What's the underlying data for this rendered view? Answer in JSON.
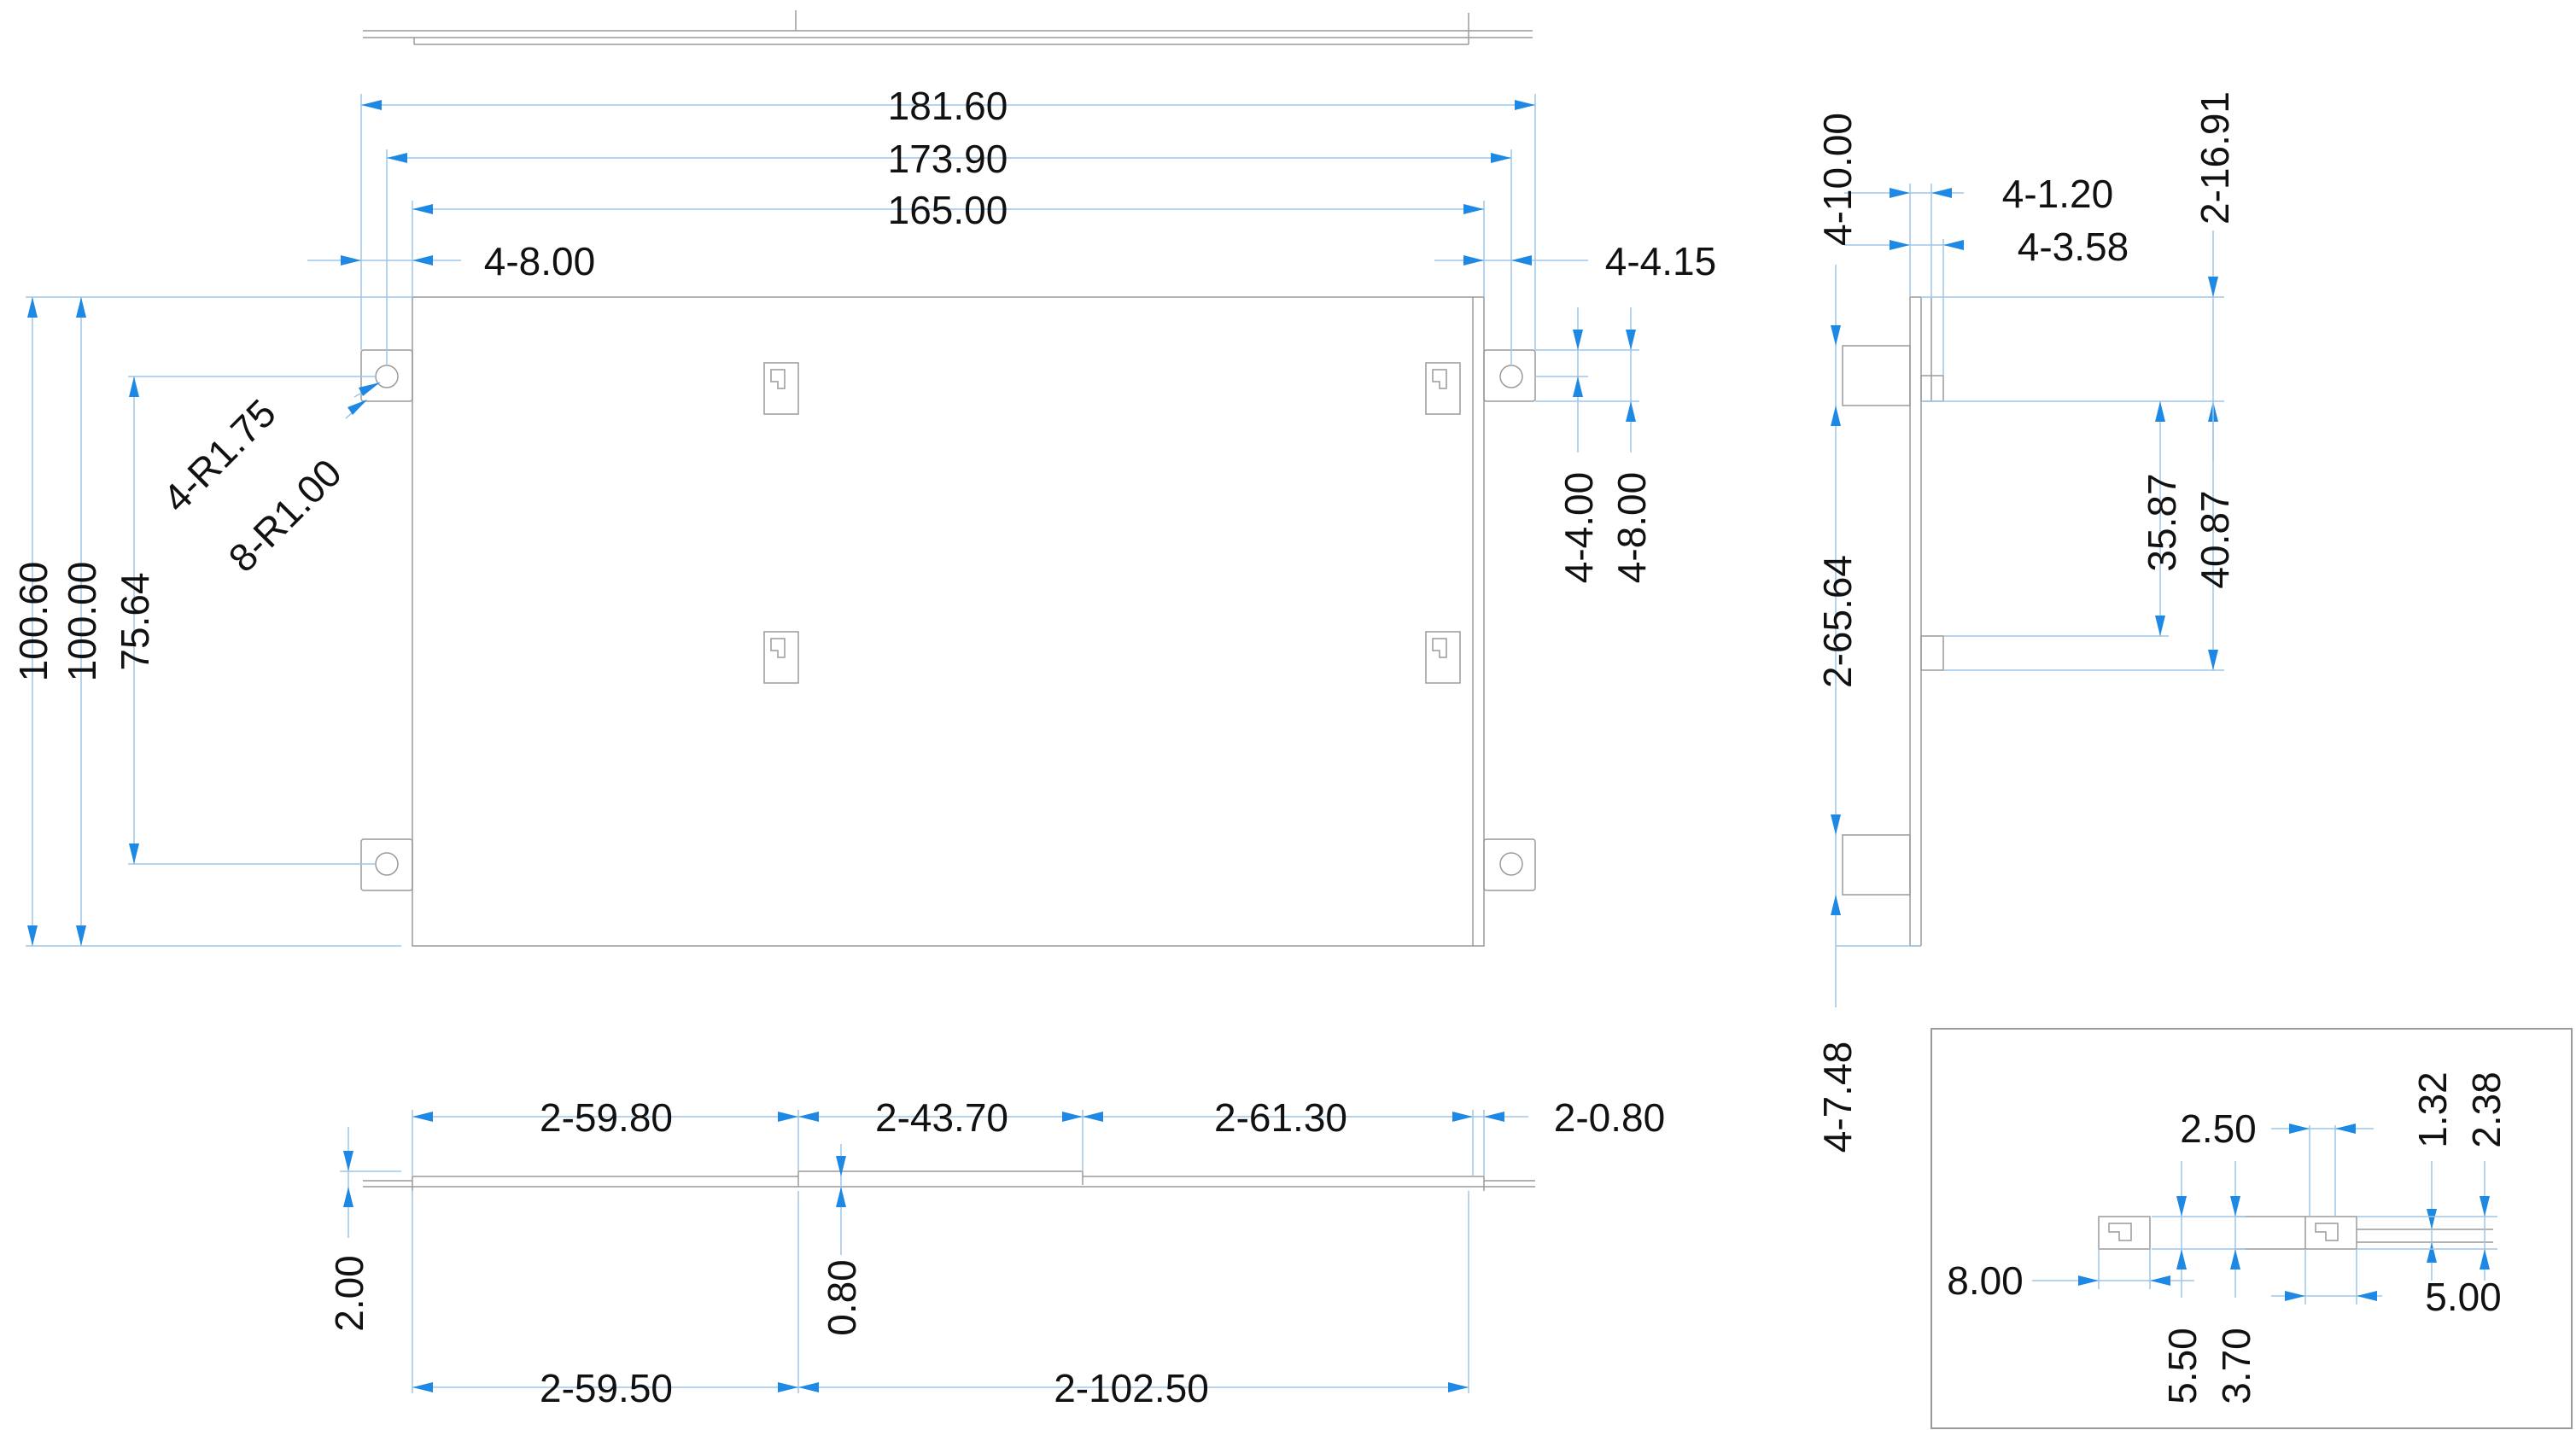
{
  "top_view": {
    "overall_width": "181.60",
    "tab_hole_pitch": "173.90",
    "body_width": "165.00",
    "left_tab": "4-8.00",
    "right_tab": "4-4.15",
    "hole_radius": "4-R1.75",
    "corner_radius": "8-R1.00",
    "overall_height": "100.60",
    "body_height": "100.00",
    "hole_pitch_v": "75.64",
    "tab_offset": "4-4.00",
    "tab_height": "4-8.00"
  },
  "side_view": {
    "flange": "4-10.00",
    "thickness": "4-1.20",
    "tab_depth": "4-3.58",
    "top_gap": "2-16.91",
    "span": "2-65.64",
    "slot_pitch": "35.87",
    "slot_span": "40.87",
    "bottom": "4-7.48"
  },
  "bottom_view": {
    "seg1": "2-59.80",
    "seg2": "2-43.70",
    "seg3": "2-61.30",
    "seg4": "2-0.80",
    "height": "2.00",
    "step": "0.80",
    "pitch1": "2-59.50",
    "pitch2": "2-102.50"
  },
  "detail": {
    "width": "2.50",
    "d1": "1.32",
    "d2": "2.38",
    "d3": "8.00",
    "d4": "5.50",
    "d5": "3.70",
    "d6": "5.00"
  }
}
